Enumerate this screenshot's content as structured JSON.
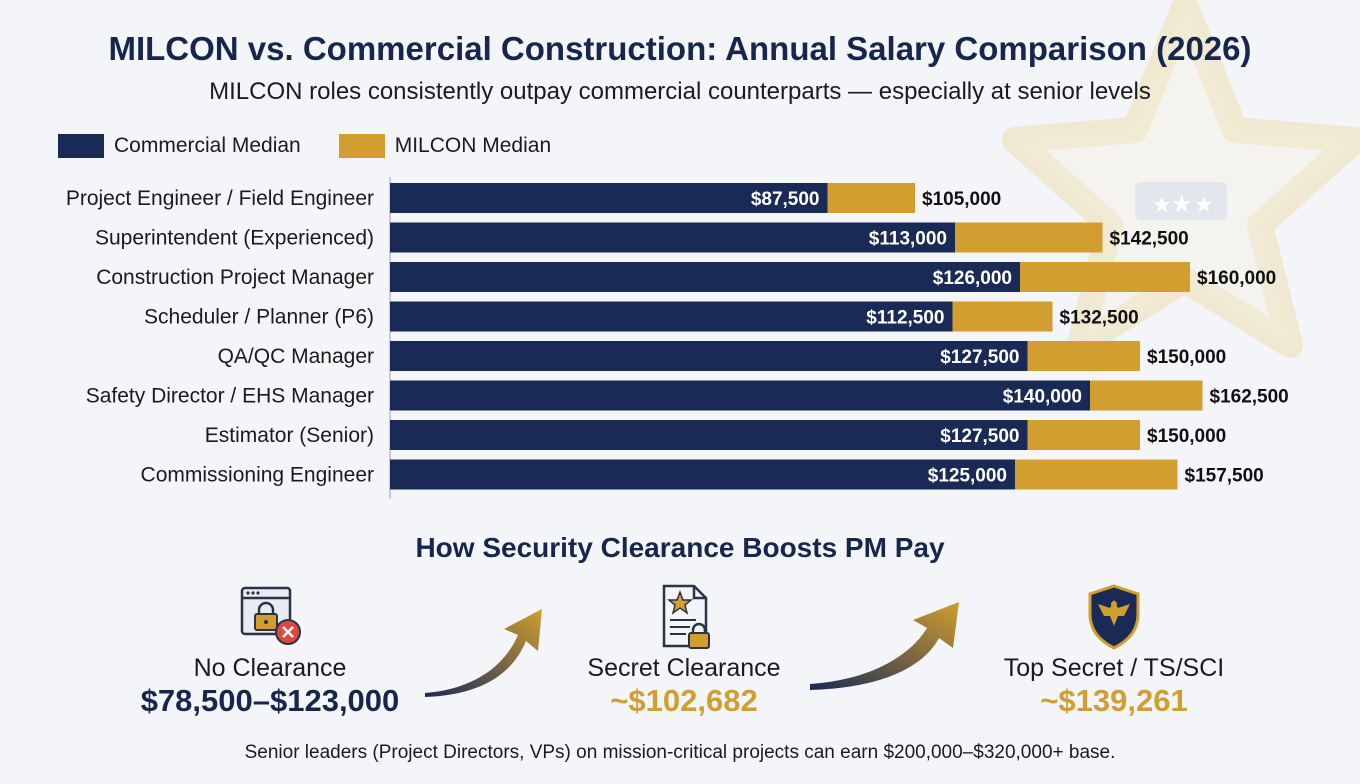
{
  "chart_data": {
    "type": "bar",
    "title": "MILCON vs. Commercial Construction: Annual Salary Comparison (2026)",
    "subtitle": "MILCON roles consistently outpay commercial counterparts — especially at senior levels",
    "legend_placement": "top-left",
    "stacked_overlay": true,
    "orientation": "horizontal",
    "xlim": [
      0,
      180000
    ],
    "categories": [
      "Project Engineer / Field Engineer",
      "Superintendent (Experienced)",
      "Construction Project Manager",
      "Scheduler / Planner (P6)",
      "QA/QC Manager",
      "Safety Director / EHS Manager",
      "Estimator (Senior)",
      "Commissioning Engineer"
    ],
    "series": [
      {
        "name": "Commercial Median",
        "color": "#1a2a56",
        "values": [
          87500,
          113000,
          126000,
          112500,
          127500,
          140000,
          127500,
          125000
        ],
        "labels": [
          "$87,500",
          "$113,000",
          "$126,000",
          "$112,500",
          "$127,500",
          "$140,000",
          "$127,500",
          "$125,000"
        ]
      },
      {
        "name": "MILCON Median",
        "color": "#d19e2f",
        "values": [
          105000,
          142500,
          160000,
          132500,
          150000,
          162500,
          150000,
          157500
        ],
        "labels": [
          "$105,000",
          "$142,500",
          "$160,000",
          "$132,500",
          "$150,000",
          "$162,500",
          "$150,000",
          "$157,500"
        ]
      }
    ]
  },
  "clearance": {
    "title": "How Security Clearance Boosts PM Pay",
    "tiers": [
      {
        "label": "No Clearance",
        "value": "$78,500–$123,000",
        "value_color": "#17264d",
        "icon": "browser-lock-denied-icon"
      },
      {
        "label": "Secret Clearance",
        "value": "~$102,682",
        "value_color": "#d19e2f",
        "icon": "document-star-lock-icon"
      },
      {
        "label": "Top Secret / TS/SCI",
        "value": "~$139,261",
        "value_color": "#d19e2f",
        "icon": "eagle-shield-icon"
      }
    ],
    "arrow_icon": "curved-up-arrow-icon"
  },
  "footnote": "Senior leaders (Project Directors, VPs) on mission-critical projects can earn $200,000–$320,000+ base.",
  "watermark_icon": "star-watermark-icon"
}
